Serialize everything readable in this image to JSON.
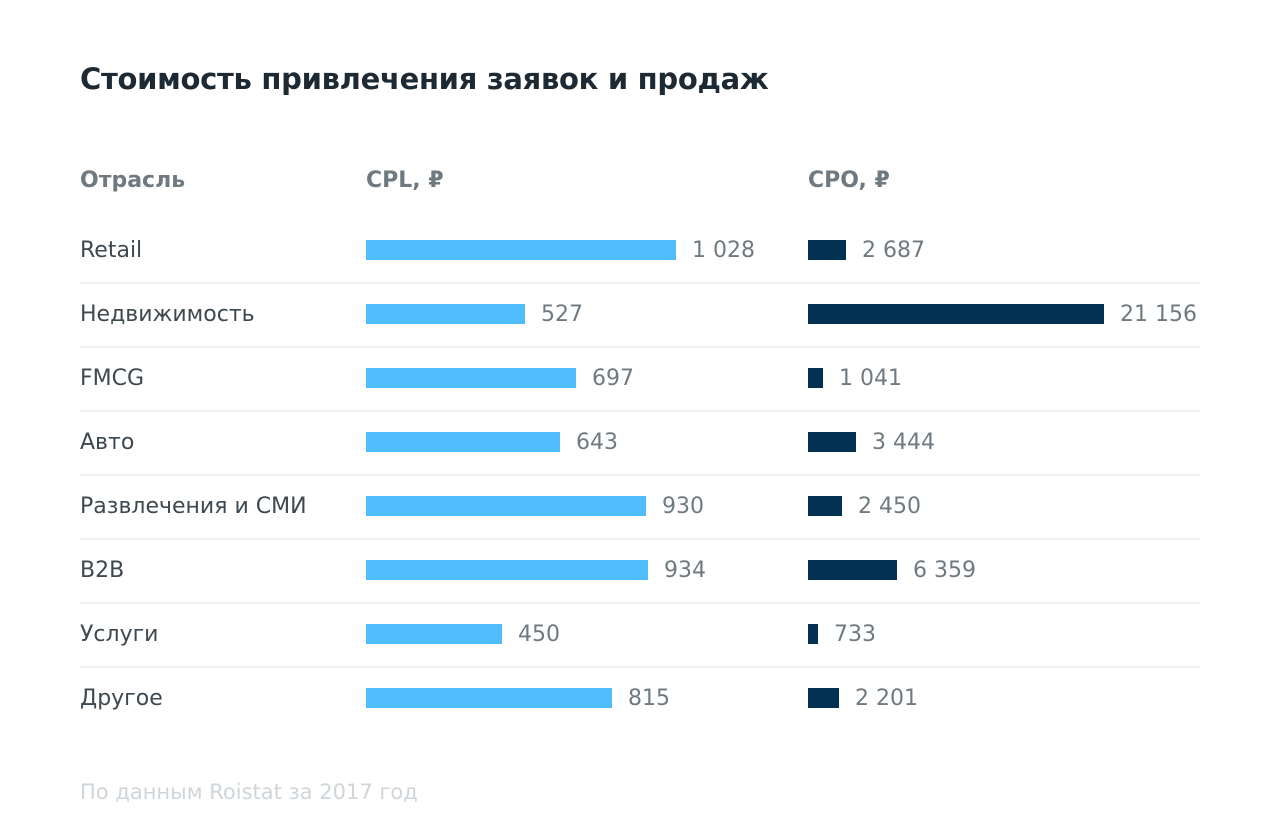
{
  "title": "Стоимость привлечения заявок и продаж",
  "headers": {
    "industry": "Отрасль",
    "cpl": "CPL, ₽",
    "cpo": "CPO, ₽"
  },
  "footnote": "По данным Roistat за 2017 год",
  "colors": {
    "cpl": "#4fbcfb",
    "cpo": "#033152"
  },
  "chart_data": {
    "type": "bar",
    "title": "Стоимость привлечения заявок и продаж",
    "categories": [
      "Retail",
      "Недвижимость",
      "FMCG",
      "Авто",
      "Развлечения и СМИ",
      "B2B",
      "Услуги",
      "Другое"
    ],
    "series": [
      {
        "name": "CPL, ₽",
        "values": [
          1028,
          527,
          697,
          643,
          930,
          934,
          450,
          815
        ],
        "labels": [
          "1 028",
          "527",
          "697",
          "643",
          "930",
          "934",
          "450",
          "815"
        ]
      },
      {
        "name": "CPO, ₽",
        "values": [
          2687,
          21156,
          1041,
          3444,
          2450,
          6359,
          733,
          2201
        ],
        "labels": [
          "2 687",
          "21 156",
          "1 041",
          "3 444",
          "2 450",
          "6 359",
          "733",
          "2 201"
        ]
      }
    ],
    "grid": false,
    "legend": "none"
  }
}
